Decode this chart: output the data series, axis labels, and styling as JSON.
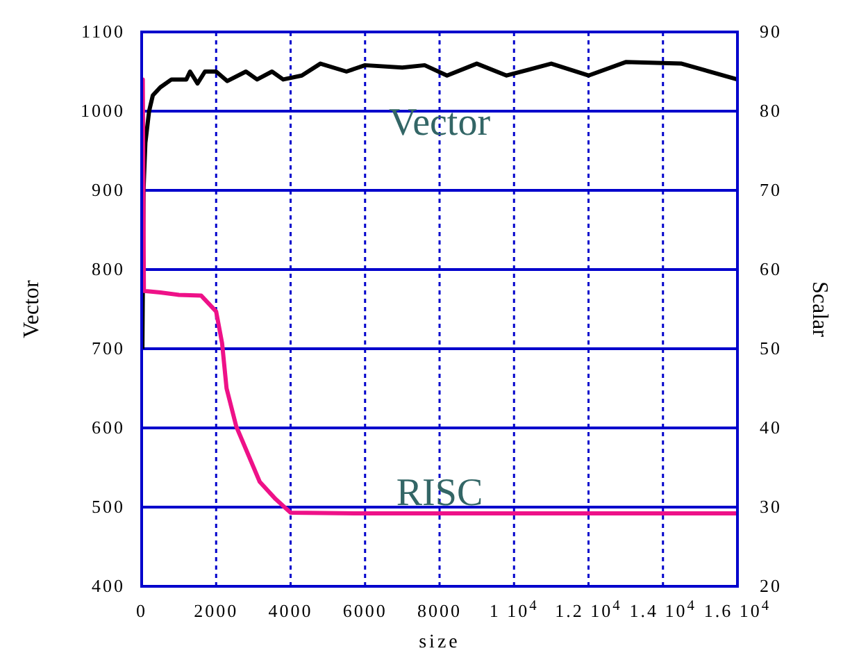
{
  "chart_data": {
    "type": "line",
    "xlabel": "size",
    "ylabel": "Vector",
    "y2label": "Scalar",
    "xlim": [
      0,
      16000
    ],
    "xticks": [
      0,
      2000,
      4000,
      6000,
      8000,
      {
        "value": 10000,
        "label": "1 10$^{4}$"
      },
      {
        "value": 12000,
        "label": "1.2 10$^{4}$"
      },
      {
        "value": 14000,
        "label": "1.4 10$^{4}$"
      },
      {
        "value": 16000,
        "label": "1.6 10$^{4}$"
      }
    ],
    "ylim": [
      400,
      1100
    ],
    "yticks": [
      400,
      500,
      600,
      700,
      800,
      900,
      1000,
      1100
    ],
    "y2lim": [
      20,
      90
    ],
    "y2ticks": [
      20,
      30,
      40,
      50,
      60,
      70,
      80,
      90
    ],
    "grid": true,
    "legend": false,
    "marker": "none",
    "line_style": "solid",
    "series": [
      {
        "name": "Vector",
        "color": "#000000",
        "x": [
          20,
          50,
          100,
          200,
          300,
          500,
          800,
          1200,
          1300,
          1500,
          1700,
          2000,
          2300,
          2800,
          3100,
          3500,
          3800,
          4300,
          4800,
          5500,
          6000,
          7000,
          7600,
          8200,
          9000,
          9800,
          11000,
          12000,
          13000,
          14500,
          16000
        ],
        "values": [
          700,
          900,
          960,
          1000,
          1020,
          1030,
          1040,
          1040,
          1050,
          1035,
          1050,
          1050,
          1038,
          1050,
          1040,
          1050,
          1040,
          1045,
          1060,
          1050,
          1058,
          1055,
          1058,
          1045,
          1060,
          1045,
          1060,
          1045,
          1062,
          1060,
          1040
        ]
      },
      {
        "name": "RISC",
        "color": "#ee1188",
        "axis": "y2",
        "x": [
          0,
          30,
          60,
          500,
          1000,
          1600,
          2000,
          2160,
          2280,
          2540,
          3170,
          3600,
          4000,
          6000,
          10000,
          16000
        ],
        "values": [
          84,
          84,
          57.3,
          57.1,
          56.8,
          56.7,
          54.7,
          50.7,
          45,
          40.2,
          33.2,
          31,
          29.3,
          29.2,
          29.2,
          29.2
        ]
      }
    ]
  }
}
